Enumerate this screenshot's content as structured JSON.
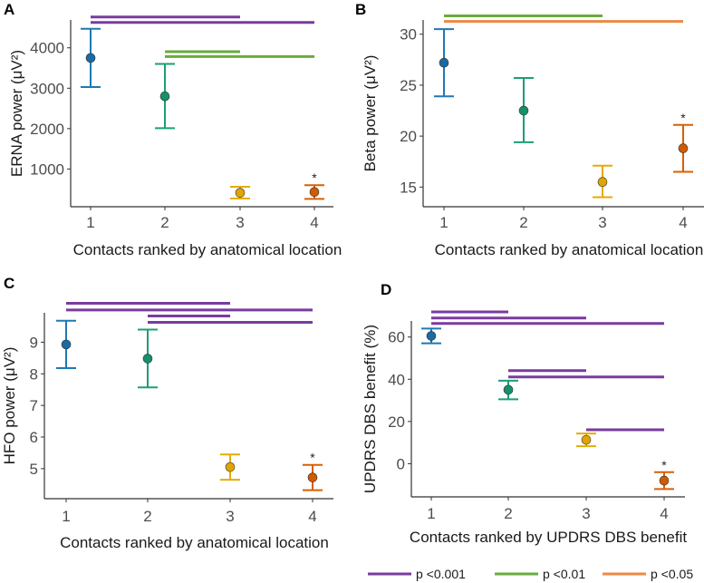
{
  "chart_data": [
    {
      "type": "scatter",
      "panel": "A",
      "xlabel": "Contacts ranked by anatomical location",
      "ylabel": "ERNA power (μV²)",
      "x": [
        1,
        2,
        3,
        4
      ],
      "xticks": [
        "1",
        "2",
        "3",
        "4"
      ],
      "yticks": [
        1000,
        2000,
        3000,
        4000
      ],
      "ylim": [
        66,
        4690
      ],
      "means": [
        3750,
        2800,
        410,
        430
      ],
      "lower": [
        3030,
        2010,
        270,
        260
      ],
      "upper": [
        4470,
        3600,
        560,
        600
      ],
      "asterisk": {
        "x": 4,
        "text": "*"
      },
      "brackets": [
        {
          "from": 1,
          "to": 3,
          "y": 4763,
          "sig": "p001"
        },
        {
          "from": 1,
          "to": 4,
          "y": 4628,
          "sig": "p001"
        },
        {
          "from": 2,
          "to": 3,
          "y": 3903,
          "sig": "p01"
        },
        {
          "from": 2,
          "to": 4,
          "y": 3783,
          "sig": "p01"
        }
      ]
    },
    {
      "type": "scatter",
      "panel": "B",
      "xlabel": "Contacts ranked by anatomical location",
      "ylabel": "Beta power (μV²)",
      "x": [
        1,
        2,
        3,
        4
      ],
      "xticks": [
        "1",
        "2",
        "3",
        "4"
      ],
      "yticks": [
        15,
        20,
        25,
        30
      ],
      "ylim": [
        13.07,
        31.4
      ],
      "means": [
        27.2,
        22.5,
        15.5,
        18.8
      ],
      "lower": [
        23.9,
        19.4,
        14.0,
        16.5
      ],
      "upper": [
        30.5,
        25.7,
        17.1,
        21.1
      ],
      "asterisk": {
        "x": 4,
        "text": "*"
      },
      "brackets": [
        {
          "from": 1,
          "to": 3,
          "y": 31.8,
          "sig": "p01"
        },
        {
          "from": 1,
          "to": 4,
          "y": 31.25,
          "sig": "p05"
        }
      ]
    },
    {
      "type": "scatter",
      "panel": "C",
      "xlabel": "Contacts ranked by anatomical location",
      "ylabel": "HFO power (μV²)",
      "x": [
        1,
        2,
        3,
        4
      ],
      "xticks": [
        "1",
        "2",
        "3",
        "4"
      ],
      "yticks": [
        5,
        6,
        7,
        8,
        9
      ],
      "ylim": [
        4.05,
        9.93
      ],
      "means": [
        8.93,
        8.48,
        5.05,
        4.72
      ],
      "lower": [
        8.18,
        7.57,
        4.65,
        4.32
      ],
      "upper": [
        9.68,
        9.4,
        5.45,
        5.12
      ],
      "asterisk": {
        "x": 4,
        "text": "*"
      },
      "brackets": [
        {
          "from": 1,
          "to": 3,
          "y": 10.23,
          "sig": "p001"
        },
        {
          "from": 1,
          "to": 4,
          "y": 10.02,
          "sig": "p001"
        },
        {
          "from": 2,
          "to": 3,
          "y": 9.83,
          "sig": "p001"
        },
        {
          "from": 2,
          "to": 4,
          "y": 9.63,
          "sig": "p001"
        }
      ]
    },
    {
      "type": "scatter",
      "panel": "D",
      "xlabel": "Contacts ranked by UPDRS DBS benefit",
      "ylabel": "UPDRS DBS benefit (%)",
      "x": [
        1,
        2,
        3,
        4
      ],
      "xticks": [
        "1",
        "2",
        "3",
        "4"
      ],
      "yticks": [
        0,
        20,
        40,
        60
      ],
      "ylim": [
        -15.7,
        67.6
      ],
      "means": [
        60.5,
        35,
        11.3,
        -8
      ],
      "lower": [
        57,
        30.5,
        8.3,
        -12
      ],
      "upper": [
        64,
        39.3,
        14.3,
        -4
      ],
      "asterisk": {
        "x": 4,
        "text": "*"
      },
      "brackets": [
        {
          "from": 1,
          "to": 2,
          "y": 71.9,
          "sig": "p001"
        },
        {
          "from": 1,
          "to": 3,
          "y": 69,
          "sig": "p001"
        },
        {
          "from": 1,
          "to": 4,
          "y": 66.4,
          "sig": "p001"
        },
        {
          "from": 2,
          "to": 3,
          "y": 44.1,
          "sig": "p001"
        },
        {
          "from": 2,
          "to": 4,
          "y": 41.1,
          "sig": "p001"
        },
        {
          "from": 3,
          "to": 4,
          "y": 16.1,
          "sig": "p001"
        }
      ]
    }
  ],
  "point_colors": [
    "#1f78b4",
    "#1b9e77",
    "#e6ab02",
    "#d95f02"
  ],
  "marker_fills": [
    "#1a6aa3",
    "#16906b",
    "#e0a500",
    "#cf5a00"
  ],
  "significance": {
    "p001": {
      "label": "p <0.001",
      "color": "#7a3b9e"
    },
    "p01": {
      "label": "p <0.01",
      "color": "#6aab3f"
    },
    "p05": {
      "label": "p <0.05",
      "color": "#ec8a45"
    }
  },
  "legend_order": [
    "p001",
    "p01",
    "p05"
  ]
}
